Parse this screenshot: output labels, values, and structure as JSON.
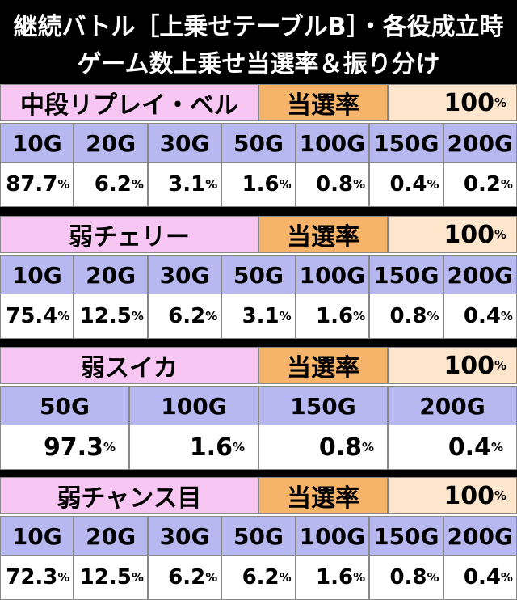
{
  "title": [
    "継続バトル［上乗せテーブルB］・各役成立時",
    "ゲーム数上乗せ当選率＆振り分け"
  ],
  "tables": [
    {
      "name": "中段リプレイ・ベル",
      "rate_label": "当選率",
      "rate": "100%",
      "columns": [
        "10G",
        "20G",
        "30G",
        "50G",
        "100G",
        "150G",
        "200G"
      ],
      "values": [
        "87.7%",
        "6.2%",
        "3.1%",
        "1.6%",
        "0.8%",
        "0.4%",
        "0.2%"
      ]
    },
    {
      "name": "弱チェリー",
      "rate_label": "当選率",
      "rate": "100%",
      "columns": [
        "10G",
        "20G",
        "30G",
        "50G",
        "100G",
        "150G",
        "200G"
      ],
      "values": [
        "75.4%",
        "12.5%",
        "6.2%",
        "3.1%",
        "1.6%",
        "0.8%",
        "0.4%"
      ]
    },
    {
      "name": "弱スイカ",
      "rate_label": "当選率",
      "rate": "100%",
      "columns": [
        "50G",
        "100G",
        "150G",
        "200G"
      ],
      "values": [
        "97.3%",
        "1.6%",
        "0.8%",
        "0.4%"
      ]
    },
    {
      "name": "弱チャンス目",
      "rate_label": "当選率",
      "rate": "100%",
      "columns": [
        "10G",
        "20G",
        "30G",
        "50G",
        "100G",
        "150G",
        "200G"
      ],
      "values": [
        "72.3%",
        "12.5%",
        "6.2%",
        "6.2%",
        "1.6%",
        "0.8%",
        "0.4%"
      ]
    }
  ]
}
